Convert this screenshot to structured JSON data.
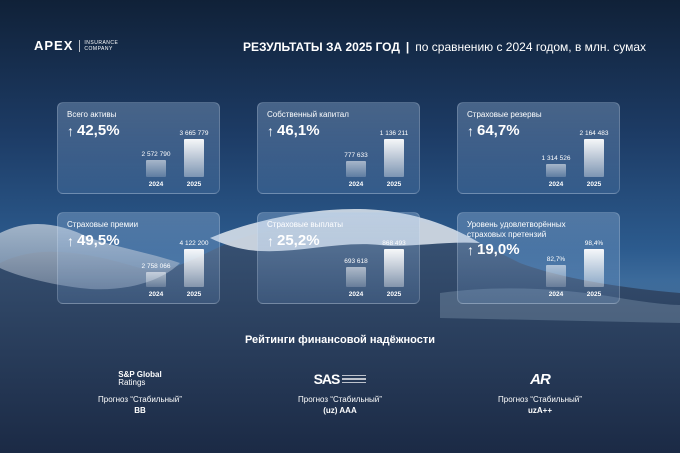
{
  "brand": {
    "name": "APEX",
    "sub": "INSURANCE COMPANY"
  },
  "header": {
    "title_bold": "РЕЗУЛЬТАТЫ ЗА 2025 ГОД",
    "separator": "|",
    "title_rest": "по сравнению с 2024 годом, в млн. сумах"
  },
  "cards": [
    {
      "title": "Всего активы",
      "pct": "42,5%",
      "v2024": "2 572 790",
      "v2025": "3 665 779",
      "y2024": "2024",
      "y2025": "2025",
      "ratio": 0.7
    },
    {
      "title": "Собственный капитал",
      "pct": "46,1%",
      "v2024": "777 633",
      "v2025": "1 136 211",
      "y2024": "2024",
      "y2025": "2025",
      "ratio": 0.68
    },
    {
      "title": "Страховые резервы",
      "pct": "64,7%",
      "v2024": "1 314 526",
      "v2025": "2 164 483",
      "y2024": "2024",
      "y2025": "2025",
      "ratio": 0.61
    },
    {
      "title": "Страховые премии",
      "pct": "49,5%",
      "v2024": "2 758 066",
      "v2025": "4 122 200",
      "y2024": "2024",
      "y2025": "2025",
      "ratio": 0.67
    },
    {
      "title": "Страховые выплаты",
      "pct": "25,2%",
      "v2024": "693 618",
      "v2025": "868 493",
      "y2024": "2024",
      "y2025": "2025",
      "ratio": 0.8
    },
    {
      "title": "Уровень удовлетворённых страховых претензий",
      "pct": "19,0%",
      "v2024": "82,7%",
      "v2025": "98,4%",
      "y2024": "2024",
      "y2025": "2025",
      "ratio": 0.84
    }
  ],
  "ratings": {
    "title": "Рейтинги финансовой надёжности",
    "items": [
      {
        "logo_line1": "S&P Global",
        "logo_line2": "Ratings",
        "forecast": "Прогноз “Стабильный”",
        "value": "BB"
      },
      {
        "logo_line1": "SAS",
        "logo_line2": "",
        "forecast": "Прогноз “Стабильный”",
        "value": "(uz) AAA"
      },
      {
        "logo_line1": "AR",
        "logo_line2": "",
        "forecast": "Прогноз “Стабильный”",
        "value": "uzA++"
      }
    ]
  },
  "colors": {
    "sky_top": "#102138",
    "sky_mid": "#2c5b8e",
    "ground": "#1d2d49"
  }
}
